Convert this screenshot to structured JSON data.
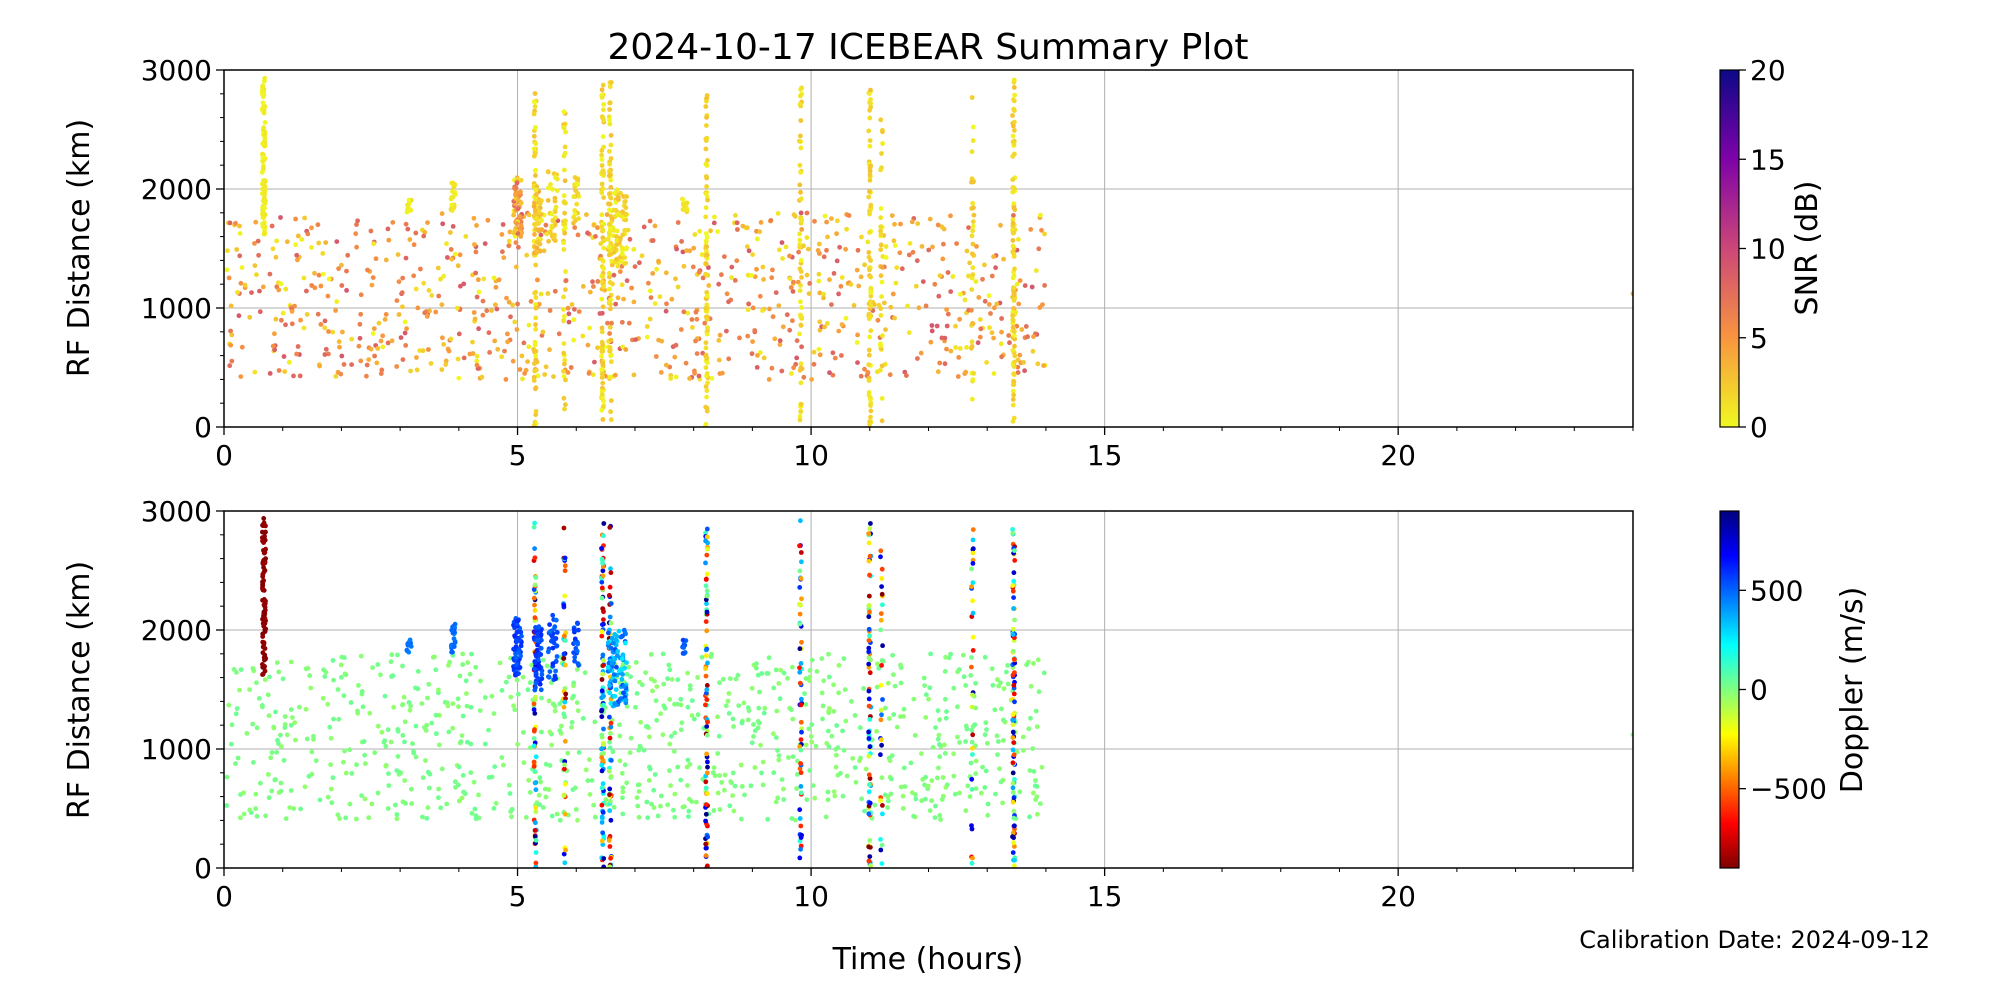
{
  "figure": {
    "title": "2024-10-17 ICEBEAR Summary Plot",
    "xlabel": "Time (hours)",
    "footer": "Calibration Date: 2024-09-12"
  },
  "chart_data": [
    {
      "type": "scatter",
      "panel": "top",
      "title": "2024-10-17 ICEBEAR Summary Plot",
      "xlabel": "",
      "ylabel": "RF Distance (km)",
      "xlim": [
        0,
        24
      ],
      "ylim": [
        0,
        3000
      ],
      "xticks": [
        0,
        5,
        10,
        15,
        20
      ],
      "yticks": [
        0,
        1000,
        2000,
        3000
      ],
      "grid": true,
      "color_by": "SNR (dB)",
      "colorbar": {
        "label": "SNR (dB)",
        "range": [
          0,
          20
        ],
        "ticks": [
          0,
          5,
          10,
          15,
          20
        ],
        "colormap": "plasma_r",
        "colors": [
          "#f0f921",
          "#f89540",
          "#cc4778",
          "#7e03a8",
          "#0d0887"
        ]
      },
      "clusters": [
        {
          "t": 0.68,
          "r": [
            1600,
            2950
          ],
          "n": 90,
          "t_spread": 0.03,
          "value": [
            0,
            1
          ]
        },
        {
          "t": 3.15,
          "r": [
            1800,
            1920
          ],
          "n": 10,
          "t_spread": 0.04,
          "value": [
            0,
            2
          ]
        },
        {
          "t": 3.9,
          "r": [
            1800,
            2050
          ],
          "n": 20,
          "t_spread": 0.04,
          "value": [
            0,
            2
          ]
        },
        {
          "t": 5.0,
          "r": [
            1600,
            2100
          ],
          "n": 60,
          "t_spread": 0.07,
          "value": [
            0,
            8
          ]
        },
        {
          "t": 5.35,
          "r": [
            1450,
            2050
          ],
          "n": 50,
          "t_spread": 0.07,
          "value": [
            0,
            4
          ]
        },
        {
          "t": 5.6,
          "r": [
            1550,
            2150
          ],
          "n": 35,
          "t_spread": 0.08,
          "value": [
            0,
            3
          ]
        },
        {
          "t": 6.0,
          "r": [
            1700,
            2100
          ],
          "n": 20,
          "t_spread": 0.05,
          "value": [
            0,
            3
          ]
        },
        {
          "t": 6.7,
          "r": [
            1350,
            2000
          ],
          "n": 90,
          "t_spread": 0.16,
          "value": [
            0,
            3
          ]
        },
        {
          "t": 7.85,
          "r": [
            1800,
            1920
          ],
          "n": 12,
          "t_spread": 0.04,
          "value": [
            0,
            2
          ]
        }
      ],
      "columns": [
        {
          "t": 5.3,
          "r": [
            0,
            2900
          ],
          "n": 70,
          "value": [
            0,
            3
          ]
        },
        {
          "t": 5.8,
          "r": [
            0,
            2880
          ],
          "n": 45,
          "value": [
            0,
            3
          ]
        },
        {
          "t": 6.45,
          "r": [
            0,
            2900
          ],
          "n": 90,
          "value": [
            0,
            3
          ]
        },
        {
          "t": 6.58,
          "r": [
            0,
            2900
          ],
          "n": 60,
          "value": [
            0,
            3
          ]
        },
        {
          "t": 8.22,
          "r": [
            0,
            2880
          ],
          "n": 80,
          "value": [
            0,
            3
          ]
        },
        {
          "t": 9.82,
          "r": [
            0,
            2950
          ],
          "n": 55,
          "value": [
            0,
            3
          ]
        },
        {
          "t": 11.0,
          "r": [
            0,
            2900
          ],
          "n": 75,
          "value": [
            0,
            3
          ]
        },
        {
          "t": 11.2,
          "r": [
            0,
            2700
          ],
          "n": 30,
          "value": [
            0,
            3
          ]
        },
        {
          "t": 12.75,
          "r": [
            0,
            2870
          ],
          "n": 30,
          "value": [
            0,
            3
          ]
        },
        {
          "t": 13.45,
          "r": [
            0,
            2930
          ],
          "n": 95,
          "value": [
            0,
            3
          ]
        }
      ],
      "background": {
        "t": [
          0.0,
          14.0
        ],
        "r": [
          400,
          1800
        ],
        "n": 900,
        "value": [
          0,
          9
        ]
      },
      "outliers": [
        {
          "t": 24.0,
          "r": 1120,
          "value": 4
        }
      ]
    },
    {
      "type": "scatter",
      "panel": "bottom",
      "xlabel": "Time (hours)",
      "ylabel": "RF Distance (km)",
      "xlim": [
        0,
        24
      ],
      "ylim": [
        0,
        3000
      ],
      "xticks": [
        0,
        5,
        10,
        15,
        20
      ],
      "yticks": [
        0,
        1000,
        2000,
        3000
      ],
      "grid": true,
      "color_by": "Doppler (m/s)",
      "colorbar": {
        "label": "Doppler (m/s)",
        "range": [
          -900,
          900
        ],
        "ticks": [
          -500,
          0,
          500
        ],
        "colormap": "jet_r",
        "colors": [
          "#7f0000",
          "#ff0000",
          "#ff8000",
          "#ffff00",
          "#80ff80",
          "#00ffff",
          "#0080ff",
          "#0000ff",
          "#00007f"
        ]
      },
      "clusters": [
        {
          "t": 0.68,
          "r": [
            1600,
            2950
          ],
          "n": 90,
          "t_spread": 0.03,
          "value": [
            -900,
            -850
          ]
        },
        {
          "t": 3.15,
          "r": [
            1800,
            1920
          ],
          "n": 10,
          "t_spread": 0.04,
          "value": [
            440,
            500
          ]
        },
        {
          "t": 3.9,
          "r": [
            1800,
            2050
          ],
          "n": 20,
          "t_spread": 0.04,
          "value": [
            450,
            520
          ]
        },
        {
          "t": 5.0,
          "r": [
            1600,
            2100
          ],
          "n": 60,
          "t_spread": 0.07,
          "value": [
            500,
            620
          ]
        },
        {
          "t": 5.35,
          "r": [
            1450,
            2050
          ],
          "n": 50,
          "t_spread": 0.07,
          "value": [
            500,
            620
          ]
        },
        {
          "t": 5.6,
          "r": [
            1550,
            2150
          ],
          "n": 35,
          "t_spread": 0.08,
          "value": [
            480,
            600
          ]
        },
        {
          "t": 6.0,
          "r": [
            1700,
            2100
          ],
          "n": 20,
          "t_spread": 0.05,
          "value": [
            480,
            600
          ]
        },
        {
          "t": 6.7,
          "r": [
            1350,
            2000
          ],
          "n": 90,
          "t_spread": 0.16,
          "value": [
            250,
            550
          ]
        },
        {
          "t": 7.85,
          "r": [
            1800,
            1920
          ],
          "n": 12,
          "t_spread": 0.04,
          "value": [
            480,
            560
          ]
        }
      ],
      "columns": [
        {
          "t": 5.3,
          "r": [
            0,
            2900
          ],
          "n": 70,
          "value": [
            -900,
            900
          ]
        },
        {
          "t": 5.8,
          "r": [
            0,
            2880
          ],
          "n": 45,
          "value": [
            -900,
            900
          ]
        },
        {
          "t": 6.45,
          "r": [
            0,
            2900
          ],
          "n": 90,
          "value": [
            -900,
            900
          ]
        },
        {
          "t": 6.58,
          "r": [
            0,
            2900
          ],
          "n": 60,
          "value": [
            -900,
            900
          ]
        },
        {
          "t": 8.22,
          "r": [
            0,
            2880
          ],
          "n": 80,
          "value": [
            -900,
            900
          ]
        },
        {
          "t": 9.82,
          "r": [
            0,
            2950
          ],
          "n": 55,
          "value": [
            -900,
            900
          ]
        },
        {
          "t": 11.0,
          "r": [
            0,
            2900
          ],
          "n": 75,
          "value": [
            -900,
            900
          ]
        },
        {
          "t": 11.2,
          "r": [
            0,
            2700
          ],
          "n": 30,
          "value": [
            -900,
            900
          ]
        },
        {
          "t": 12.75,
          "r": [
            0,
            2870
          ],
          "n": 30,
          "value": [
            -900,
            900
          ]
        },
        {
          "t": 13.45,
          "r": [
            0,
            2930
          ],
          "n": 95,
          "value": [
            -900,
            900
          ]
        }
      ],
      "background": {
        "t": [
          0.0,
          14.0
        ],
        "r": [
          400,
          1800
        ],
        "n": 900,
        "value": [
          -40,
          40
        ]
      },
      "outliers": [
        {
          "t": 24.0,
          "r": 1120,
          "value": 0
        }
      ]
    }
  ]
}
